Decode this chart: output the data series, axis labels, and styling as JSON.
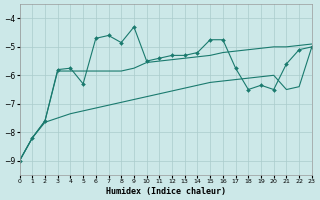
{
  "xlabel": "Humidex (Indice chaleur)",
  "bg_color": "#cce8e8",
  "grid_color": "#aacccc",
  "line_color": "#1a7a6e",
  "xlim": [
    0,
    23
  ],
  "ylim": [
    -9.5,
    -3.5
  ],
  "yticks": [
    -9,
    -8,
    -7,
    -6,
    -5,
    -4
  ],
  "xticks": [
    0,
    1,
    2,
    3,
    4,
    5,
    6,
    7,
    8,
    9,
    10,
    11,
    12,
    13,
    14,
    15,
    16,
    17,
    18,
    19,
    20,
    21,
    22,
    23
  ],
  "main_x": [
    0,
    1,
    2,
    3,
    4,
    5,
    6,
    7,
    8,
    9,
    10,
    11,
    12,
    13,
    14,
    15,
    16,
    17,
    18,
    19,
    20,
    21,
    22,
    23
  ],
  "main_y": [
    -9.0,
    -8.2,
    -7.6,
    -5.8,
    -5.75,
    -6.3,
    -4.7,
    -4.6,
    -4.85,
    -4.3,
    -5.5,
    -5.4,
    -5.3,
    -5.3,
    -5.2,
    -4.75,
    -4.75,
    -5.75,
    -6.5,
    -6.35,
    -6.5,
    -5.6,
    -5.1,
    -5.0
  ],
  "upper_x": [
    0,
    1,
    2,
    3,
    4,
    5,
    6,
    7,
    8,
    9,
    10,
    11,
    12,
    13,
    14,
    15,
    16,
    17,
    18,
    19,
    20,
    21,
    22,
    23
  ],
  "upper_y": [
    -9.0,
    -8.2,
    -7.6,
    -5.85,
    -5.85,
    -5.85,
    -5.85,
    -5.85,
    -5.85,
    -5.75,
    -5.55,
    -5.5,
    -5.45,
    -5.4,
    -5.35,
    -5.3,
    -5.2,
    -5.15,
    -5.1,
    -5.05,
    -5.0,
    -5.0,
    -4.95,
    -4.9
  ],
  "lower_x": [
    0,
    1,
    2,
    3,
    4,
    5,
    6,
    7,
    8,
    9,
    10,
    11,
    12,
    13,
    14,
    15,
    16,
    17,
    18,
    19,
    20,
    21,
    22,
    23
  ],
  "lower_y": [
    -9.0,
    -8.2,
    -7.65,
    -7.5,
    -7.35,
    -7.25,
    -7.15,
    -7.05,
    -6.95,
    -6.85,
    -6.75,
    -6.65,
    -6.55,
    -6.45,
    -6.35,
    -6.25,
    -6.2,
    -6.15,
    -6.1,
    -6.05,
    -6.0,
    -6.5,
    -6.4,
    -5.0
  ]
}
